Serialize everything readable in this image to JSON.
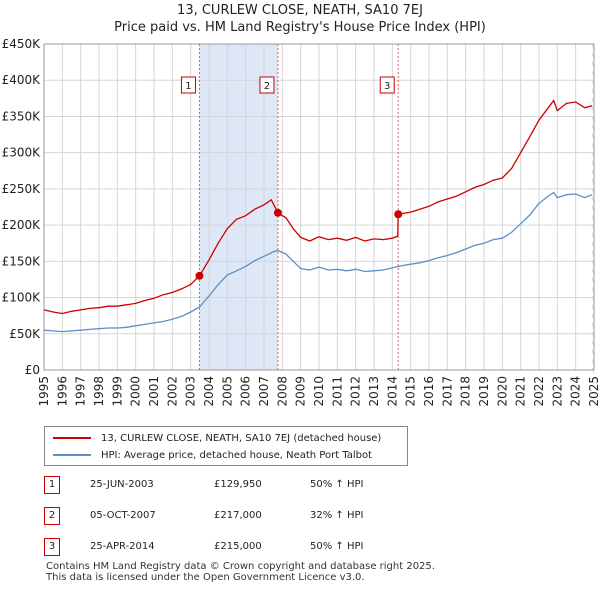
{
  "title_line1": "13, CURLEW CLOSE, NEATH, SA10 7EJ",
  "title_line2": "Price paid vs. HM Land Registry's House Price Index (HPI)",
  "colors": {
    "property": "#cc0000",
    "hpi": "#5b8fc9",
    "shade": "#dde7f6",
    "grid": "#d6d6d6"
  },
  "legend": {
    "property_label": "13, CURLEW CLOSE, NEATH, SA10 7EJ (detached house)",
    "hpi_label": "HPI: Average price, detached house, Neath Port Talbot"
  },
  "sales": [
    {
      "num": "1",
      "date": "25-JUN-2003",
      "price": "£129,950",
      "hpi": "50% ↑ HPI"
    },
    {
      "num": "2",
      "date": "05-OCT-2007",
      "price": "£217,000",
      "hpi": "32% ↑ HPI"
    },
    {
      "num": "3",
      "date": "25-APR-2014",
      "price": "£215,000",
      "hpi": "50% ↑ HPI"
    }
  ],
  "footer_line1": "Contains HM Land Registry data © Crown copyright and database right 2025.",
  "footer_line2": "This data is licensed under the Open Government Licence v3.0.",
  "chart_data": {
    "type": "line",
    "title": "Price paid vs. HM Land Registry's House Price Index (HPI)",
    "xlabel": "",
    "ylabel": "",
    "xlim": [
      1995,
      2025
    ],
    "ylim": [
      0,
      450000
    ],
    "y_ticks": [
      {
        "value": 0,
        "label": "£0"
      },
      {
        "value": 50000,
        "label": "£50K"
      },
      {
        "value": 100000,
        "label": "£100K"
      },
      {
        "value": 150000,
        "label": "£150K"
      },
      {
        "value": 200000,
        "label": "£200K"
      },
      {
        "value": 250000,
        "label": "£250K"
      },
      {
        "value": 300000,
        "label": "£300K"
      },
      {
        "value": 350000,
        "label": "£350K"
      },
      {
        "value": 400000,
        "label": "£400K"
      },
      {
        "value": 450000,
        "label": "£450K"
      }
    ],
    "x_ticks": [
      "1995",
      "1996",
      "1997",
      "1998",
      "1999",
      "2000",
      "2001",
      "2002",
      "2003",
      "2004",
      "2005",
      "2006",
      "2007",
      "2008",
      "2009",
      "2010",
      "2011",
      "2012",
      "2013",
      "2014",
      "2015",
      "2016",
      "2017",
      "2018",
      "2019",
      "2020",
      "2021",
      "2022",
      "2023",
      "2024",
      "2025"
    ],
    "shaded_regions": [
      [
        2003.48,
        2007.76
      ]
    ],
    "sale_markers": [
      {
        "label": "1",
        "x": 2003.48,
        "y": 129950
      },
      {
        "label": "2",
        "x": 2007.76,
        "y": 217000
      },
      {
        "label": "3",
        "x": 2014.32,
        "y": 215000
      }
    ],
    "series": [
      {
        "name": "13, CURLEW CLOSE, NEATH, SA10 7EJ (detached house)",
        "color": "#cc0000",
        "points": [
          [
            1995.0,
            83000
          ],
          [
            1995.5,
            80000
          ],
          [
            1996.0,
            78000
          ],
          [
            1996.5,
            81000
          ],
          [
            1997.0,
            83000
          ],
          [
            1997.5,
            85000
          ],
          [
            1998.0,
            86000
          ],
          [
            1998.5,
            88000
          ],
          [
            1999.0,
            88000
          ],
          [
            1999.5,
            90000
          ],
          [
            2000.0,
            92000
          ],
          [
            2000.5,
            96000
          ],
          [
            2001.0,
            99000
          ],
          [
            2001.5,
            104000
          ],
          [
            2002.0,
            107000
          ],
          [
            2002.5,
            112000
          ],
          [
            2003.0,
            118000
          ],
          [
            2003.48,
            129950
          ],
          [
            2004.0,
            152000
          ],
          [
            2004.5,
            175000
          ],
          [
            2005.0,
            195000
          ],
          [
            2005.5,
            208000
          ],
          [
            2006.0,
            213000
          ],
          [
            2006.5,
            222000
          ],
          [
            2007.0,
            228000
          ],
          [
            2007.4,
            235000
          ],
          [
            2007.76,
            217000
          ],
          [
            2008.2,
            210000
          ],
          [
            2008.6,
            195000
          ],
          [
            2009.0,
            183000
          ],
          [
            2009.5,
            178000
          ],
          [
            2010.0,
            184000
          ],
          [
            2010.5,
            180000
          ],
          [
            2011.0,
            182000
          ],
          [
            2011.5,
            179000
          ],
          [
            2012.0,
            183000
          ],
          [
            2012.5,
            178000
          ],
          [
            2013.0,
            181000
          ],
          [
            2013.5,
            180000
          ],
          [
            2014.0,
            182000
          ],
          [
            2014.3,
            185000
          ],
          [
            2014.32,
            215000
          ],
          [
            2015.0,
            218000
          ],
          [
            2015.5,
            222000
          ],
          [
            2016.0,
            226000
          ],
          [
            2016.5,
            232000
          ],
          [
            2017.0,
            236000
          ],
          [
            2017.5,
            240000
          ],
          [
            2018.0,
            246000
          ],
          [
            2018.5,
            252000
          ],
          [
            2019.0,
            256000
          ],
          [
            2019.5,
            262000
          ],
          [
            2020.0,
            265000
          ],
          [
            2020.5,
            278000
          ],
          [
            2021.0,
            300000
          ],
          [
            2021.5,
            322000
          ],
          [
            2022.0,
            345000
          ],
          [
            2022.5,
            362000
          ],
          [
            2022.8,
            372000
          ],
          [
            2023.0,
            358000
          ],
          [
            2023.5,
            368000
          ],
          [
            2024.0,
            370000
          ],
          [
            2024.5,
            362000
          ],
          [
            2024.9,
            365000
          ]
        ]
      },
      {
        "name": "HPI: Average price, detached house, Neath Port Talbot",
        "color": "#5b8fc9",
        "points": [
          [
            1995.0,
            55000
          ],
          [
            1995.5,
            54000
          ],
          [
            1996.0,
            53000
          ],
          [
            1996.5,
            54000
          ],
          [
            1997.0,
            55000
          ],
          [
            1997.5,
            56000
          ],
          [
            1998.0,
            57000
          ],
          [
            1998.5,
            58000
          ],
          [
            1999.0,
            58000
          ],
          [
            1999.5,
            59000
          ],
          [
            2000.0,
            61000
          ],
          [
            2000.5,
            63000
          ],
          [
            2001.0,
            65000
          ],
          [
            2001.5,
            67000
          ],
          [
            2002.0,
            70000
          ],
          [
            2002.5,
            74000
          ],
          [
            2003.0,
            80000
          ],
          [
            2003.48,
            87000
          ],
          [
            2004.0,
            102000
          ],
          [
            2004.5,
            118000
          ],
          [
            2005.0,
            131000
          ],
          [
            2005.5,
            137000
          ],
          [
            2006.0,
            143000
          ],
          [
            2006.5,
            151000
          ],
          [
            2007.0,
            157000
          ],
          [
            2007.5,
            163000
          ],
          [
            2007.76,
            165000
          ],
          [
            2008.2,
            160000
          ],
          [
            2008.6,
            150000
          ],
          [
            2009.0,
            140000
          ],
          [
            2009.5,
            138000
          ],
          [
            2010.0,
            142000
          ],
          [
            2010.5,
            138000
          ],
          [
            2011.0,
            139000
          ],
          [
            2011.5,
            137000
          ],
          [
            2012.0,
            139000
          ],
          [
            2012.5,
            136000
          ],
          [
            2013.0,
            137000
          ],
          [
            2013.5,
            138000
          ],
          [
            2014.0,
            141000
          ],
          [
            2014.32,
            143000
          ],
          [
            2015.0,
            146000
          ],
          [
            2015.5,
            148000
          ],
          [
            2016.0,
            151000
          ],
          [
            2016.5,
            155000
          ],
          [
            2017.0,
            158000
          ],
          [
            2017.5,
            162000
          ],
          [
            2018.0,
            167000
          ],
          [
            2018.5,
            172000
          ],
          [
            2019.0,
            175000
          ],
          [
            2019.5,
            180000
          ],
          [
            2020.0,
            182000
          ],
          [
            2020.5,
            190000
          ],
          [
            2021.0,
            202000
          ],
          [
            2021.5,
            214000
          ],
          [
            2022.0,
            230000
          ],
          [
            2022.5,
            240000
          ],
          [
            2022.8,
            245000
          ],
          [
            2023.0,
            238000
          ],
          [
            2023.5,
            242000
          ],
          [
            2024.0,
            243000
          ],
          [
            2024.5,
            238000
          ],
          [
            2024.9,
            242000
          ]
        ]
      }
    ]
  }
}
